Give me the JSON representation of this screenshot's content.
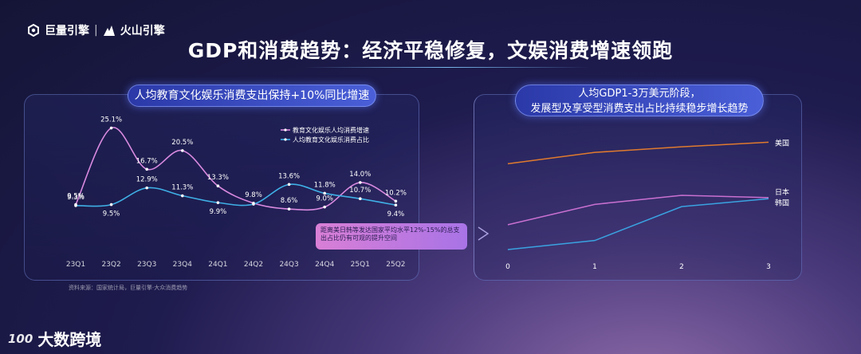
{
  "header": {
    "brand1": "巨量引擎",
    "brand_sep": "|",
    "brand2": "火山引擎",
    "title": "GDP和消费趋势：经济平稳修复，文娱消费增速领跑"
  },
  "left_panel": {
    "heading": "人均教育文化娱乐消费支出保持+10%同比增速",
    "note": "距离美日韩等发达国家平均水平12%-15%的总支出占比仍有可观的提升空间",
    "source": "资料来源：国家统计局，巨量引擎·大众消费趋势"
  },
  "right_panel": {
    "heading_line1": "人均GDP1-3万美元阶段，",
    "heading_line2": "发展型及享受型消费支出占比持续稳步增长趋势"
  },
  "footer": {
    "logo_text": "大数跨境",
    "logo_mark": "100"
  },
  "chart_data": [
    {
      "type": "line",
      "categories": [
        "23Q1",
        "23Q2",
        "23Q3",
        "23Q4",
        "24Q1",
        "24Q2",
        "24Q3",
        "24Q4",
        "25Q1",
        "25Q2"
      ],
      "series": [
        {
          "name": "教育文化娱乐人均消费增速",
          "color": "#d98ae0",
          "values": [
            9.5,
            25.1,
            16.7,
            20.5,
            13.3,
            9.8,
            8.6,
            9.0,
            14.0,
            10.2
          ],
          "labels": [
            "9.5%",
            "25.1%",
            "16.7%",
            "20.5%",
            "13.3%",
            "9.8%",
            "8.6%",
            "9.0%",
            "14.0%",
            "10.2%"
          ]
        },
        {
          "name": "人均教育文化娱乐消费占比",
          "color": "#3fb0e6",
          "values": [
            9.3,
            9.5,
            12.9,
            11.3,
            9.9,
            9.6,
            13.6,
            11.8,
            10.7,
            9.4
          ],
          "labels": [
            "9.3%",
            "9.5%",
            "12.9%",
            "11.3%",
            "9.9%",
            "",
            "13.6%",
            "11.8%",
            "10.7%",
            "9.4%"
          ]
        }
      ],
      "ylim": [
        7,
        26
      ]
    },
    {
      "type": "line",
      "x": [
        0,
        1,
        2,
        3
      ],
      "x_ticks": [
        "0",
        "1",
        "2",
        "3"
      ],
      "series": [
        {
          "name": "美国",
          "color": "#e07a2e",
          "values": [
            0.74,
            0.79,
            0.815,
            0.835
          ]
        },
        {
          "name": "日本",
          "color": "#c970d0",
          "values": [
            0.47,
            0.56,
            0.6,
            0.59
          ]
        },
        {
          "name": "韩国",
          "color": "#3aa2e0",
          "values": [
            0.36,
            0.4,
            0.55,
            0.585
          ]
        }
      ],
      "ylim": [
        0.3,
        0.9
      ]
    }
  ]
}
